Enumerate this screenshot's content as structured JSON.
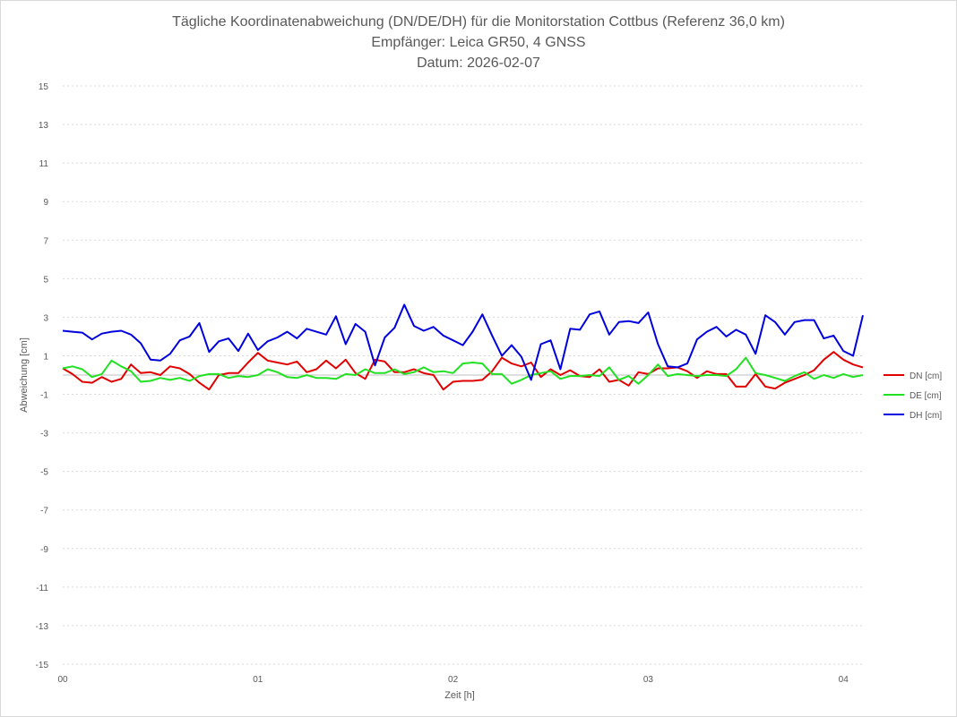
{
  "chart_data": {
    "type": "line",
    "title_lines": [
      "Tägliche Koordinatenabweichung (DN/DE/DH) für die Monitorstation Cottbus (Referenz 36,0 km)",
      "Empfänger: Leica GR50, 4 GNSS",
      "Datum: 2026-02-07"
    ],
    "xlabel": "Zeit [h]",
    "ylabel": "Abweichung [cm]",
    "xlim": [
      0,
      4.1
    ],
    "ylim": [
      -15,
      15
    ],
    "x_ticks": [
      {
        "value": 0,
        "label": "00"
      },
      {
        "value": 1,
        "label": "01"
      },
      {
        "value": 2,
        "label": "02"
      },
      {
        "value": 3,
        "label": "03"
      },
      {
        "value": 4,
        "label": "04"
      }
    ],
    "y_ticks": [
      {
        "value": 15,
        "label": "15"
      },
      {
        "value": 13,
        "label": "13"
      },
      {
        "value": 11,
        "label": "11"
      },
      {
        "value": 9,
        "label": "9"
      },
      {
        "value": 7,
        "label": "7"
      },
      {
        "value": 5,
        "label": "5"
      },
      {
        "value": 3,
        "label": "3"
      },
      {
        "value": 1,
        "label": "1"
      },
      {
        "value": -1,
        "label": "-1"
      },
      {
        "value": -3,
        "label": "-3"
      },
      {
        "value": -5,
        "label": "-5"
      },
      {
        "value": -7,
        "label": "-7"
      },
      {
        "value": -9,
        "label": "-9"
      },
      {
        "value": -11,
        "label": "-11"
      },
      {
        "value": -13,
        "label": "-13"
      },
      {
        "value": -15,
        "label": "-15"
      }
    ],
    "grid": true,
    "legend_position": "right",
    "x_step": 0.05,
    "series": [
      {
        "name": "DN [cm]",
        "color": "#e00000",
        "values": [
          0.35,
          0.05,
          -0.35,
          -0.4,
          -0.1,
          -0.35,
          -0.2,
          0.55,
          0.1,
          0.15,
          0.0,
          0.45,
          0.35,
          0.05,
          -0.4,
          -0.75,
          0.0,
          0.1,
          0.1,
          0.65,
          1.15,
          0.75,
          0.65,
          0.55,
          0.7,
          0.15,
          0.3,
          0.75,
          0.35,
          0.8,
          0.1,
          -0.2,
          0.8,
          0.7,
          0.15,
          0.15,
          0.3,
          0.1,
          0.0,
          -0.75,
          -0.35,
          -0.3,
          -0.3,
          -0.25,
          0.2,
          0.9,
          0.6,
          0.45,
          0.65,
          -0.1,
          0.3,
          0.0,
          0.25,
          -0.05,
          -0.1,
          0.3,
          -0.35,
          -0.25,
          -0.55,
          0.15,
          0.05,
          0.35,
          0.35,
          0.4,
          0.2,
          -0.15,
          0.2,
          0.05,
          0.05,
          -0.6,
          -0.6,
          0.05,
          -0.6,
          -0.7,
          -0.4,
          -0.2,
          0.0,
          0.25,
          0.8,
          1.2,
          0.8,
          0.55,
          0.4
        ]
      },
      {
        "name": "DE [cm]",
        "color": "#22e022",
        "values": [
          0.35,
          0.45,
          0.3,
          -0.1,
          0.05,
          0.75,
          0.45,
          0.2,
          -0.35,
          -0.3,
          -0.15,
          -0.25,
          -0.15,
          -0.3,
          -0.05,
          0.05,
          0.05,
          -0.15,
          -0.05,
          -0.1,
          0.0,
          0.3,
          0.15,
          -0.1,
          -0.15,
          0.0,
          -0.15,
          -0.15,
          -0.2,
          0.05,
          0.0,
          0.3,
          0.1,
          0.1,
          0.3,
          0.05,
          0.15,
          0.4,
          0.15,
          0.2,
          0.1,
          0.6,
          0.65,
          0.6,
          0.05,
          0.05,
          -0.45,
          -0.25,
          0.0,
          0.1,
          0.2,
          -0.2,
          -0.05,
          -0.05,
          0.0,
          -0.05,
          0.4,
          -0.25,
          -0.05,
          -0.45,
          0.0,
          0.55,
          -0.05,
          0.05,
          0.0,
          -0.05,
          0.0,
          0.0,
          -0.05,
          0.3,
          0.9,
          0.1,
          0.0,
          -0.15,
          -0.3,
          -0.05,
          0.15,
          -0.2,
          0.0,
          -0.15,
          0.05,
          -0.1,
          0.0
        ]
      },
      {
        "name": "DH [cm]",
        "color": "#0000dd",
        "values": [
          2.3,
          2.25,
          2.2,
          1.85,
          2.15,
          2.25,
          2.3,
          2.1,
          1.65,
          0.8,
          0.75,
          1.1,
          1.8,
          2.0,
          2.7,
          1.2,
          1.75,
          1.9,
          1.25,
          2.15,
          1.3,
          1.75,
          1.95,
          2.25,
          1.9,
          2.4,
          2.25,
          2.1,
          3.05,
          1.6,
          2.65,
          2.25,
          0.5,
          1.95,
          2.45,
          3.65,
          2.55,
          2.3,
          2.5,
          2.05,
          1.8,
          1.55,
          2.25,
          3.15,
          2.05,
          1.0,
          1.55,
          0.95,
          -0.25,
          1.6,
          1.8,
          0.3,
          2.4,
          2.35,
          3.15,
          3.3,
          2.1,
          2.75,
          2.8,
          2.7,
          3.25,
          1.6,
          0.45,
          0.4,
          0.6,
          1.85,
          2.25,
          2.5,
          2.0,
          2.35,
          2.1,
          1.1,
          3.1,
          2.75,
          2.1,
          2.75,
          2.85,
          2.85,
          1.9,
          2.05,
          1.25,
          1.0,
          3.1
        ]
      }
    ]
  }
}
